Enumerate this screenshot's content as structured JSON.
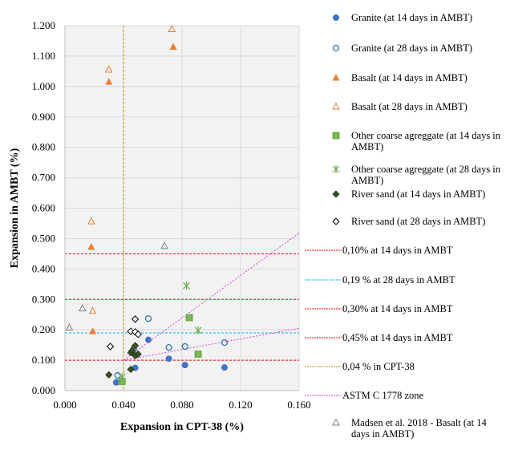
{
  "chart_data": {
    "type": "scatter",
    "title": "",
    "xlabel": "Expansion in CPT-38 (%)",
    "ylabel": "Expansion in AMBT (%)",
    "xlim": [
      0.0,
      0.16
    ],
    "ylim": [
      0.0,
      1.2
    ],
    "xticks": [
      "0.000",
      "0.040",
      "0.080",
      "0.120",
      "0.160"
    ],
    "xtick_values": [
      0.0,
      0.04,
      0.08,
      0.12,
      0.16
    ],
    "yticks": [
      "0.000",
      "0.100",
      "0.200",
      "0.300",
      "0.400",
      "0.500",
      "0.600",
      "0.700",
      "0.800",
      "0.900",
      "1.000",
      "1.100",
      "1.200"
    ],
    "ytick_values": [
      0.0,
      0.1,
      0.2,
      0.3,
      0.4,
      0.5,
      0.6,
      0.7,
      0.8,
      0.9,
      1.0,
      1.1,
      1.2
    ],
    "grid": true,
    "legend_position": "right",
    "series": [
      {
        "name": "Granite (at 14 days in AMBT)",
        "marker": "circle-filled",
        "color": "#4472C4",
        "points": [
          [
            0.035,
            0.027
          ],
          [
            0.048,
            0.075
          ],
          [
            0.057,
            0.167
          ],
          [
            0.071,
            0.105
          ],
          [
            0.082,
            0.084
          ],
          [
            0.109,
            0.076
          ]
        ]
      },
      {
        "name": "Granite (at 28 days in AMBT)",
        "marker": "circle-open",
        "color": "#2E75B6",
        "points": [
          [
            0.036,
            0.05
          ],
          [
            0.047,
            0.137
          ],
          [
            0.057,
            0.237
          ],
          [
            0.071,
            0.142
          ],
          [
            0.082,
            0.145
          ],
          [
            0.109,
            0.158
          ]
        ]
      },
      {
        "name": "Basalt (at 14 days in AMBT)",
        "marker": "triangle-filled",
        "color": "#ED7D31",
        "points": [
          [
            0.03,
            1.015
          ],
          [
            0.074,
            1.13
          ],
          [
            0.018,
            0.472
          ],
          [
            0.019,
            0.195
          ]
        ]
      },
      {
        "name": "Basalt (at 28 days in AMBT)",
        "marker": "triangle-open",
        "color": "#ED7D31",
        "points": [
          [
            0.03,
            1.055
          ],
          [
            0.073,
            1.188
          ],
          [
            0.018,
            0.556
          ],
          [
            0.019,
            0.262
          ]
        ]
      },
      {
        "name": "Other coarse agreggate (at 14 days in AMBT)",
        "marker": "square-filled",
        "color": "#70AD47",
        "points": [
          [
            0.039,
            0.03
          ],
          [
            0.085,
            0.24
          ],
          [
            0.091,
            0.12
          ]
        ]
      },
      {
        "name": "Other coarse agreggate (at 28 days in AMBT)",
        "marker": "star",
        "color": "#70AD47",
        "points": [
          [
            0.039,
            0.045
          ],
          [
            0.083,
            0.345
          ],
          [
            0.091,
            0.198
          ]
        ]
      },
      {
        "name": "River sand (at 14 days in AMBT)",
        "marker": "diamond-filled",
        "color": "#375623",
        "points": [
          [
            0.03,
            0.052
          ],
          [
            0.045,
            0.07
          ],
          [
            0.045,
            0.125
          ],
          [
            0.046,
            0.132
          ],
          [
            0.048,
            0.148
          ],
          [
            0.048,
            0.115
          ],
          [
            0.05,
            0.12
          ]
        ]
      },
      {
        "name": "River sand (at 28 days in AMBT)",
        "marker": "diamond-open",
        "color": "#000000",
        "points": [
          [
            0.031,
            0.145
          ],
          [
            0.045,
            0.195
          ],
          [
            0.048,
            0.235
          ],
          [
            0.048,
            0.193
          ],
          [
            0.05,
            0.185
          ]
        ]
      },
      {
        "name": "Madsen et al. 2018 - Basalt (at 14 days in AMBT)",
        "marker": "triangle-open",
        "color": "#808080",
        "points": [
          [
            0.003,
            0.207
          ],
          [
            0.012,
            0.27
          ],
          [
            0.068,
            0.475
          ]
        ]
      }
    ],
    "reference_lines": [
      {
        "name": "0,10% at 14 days in AMBT",
        "type": "horizontal",
        "value": 0.1,
        "color": "#FF0000"
      },
      {
        "name": "0,19 % at 28 days in AMBT",
        "type": "horizontal",
        "value": 0.19,
        "color": "#00B0F0"
      },
      {
        "name": "0,30% at 14 days in AMBT",
        "type": "horizontal",
        "value": 0.3,
        "color": "#FF0000"
      },
      {
        "name": "0,45% at 14 days in AMBT",
        "type": "horizontal",
        "value": 0.45,
        "color": "#FF0000"
      },
      {
        "name": "0,04 % in CPT-38",
        "type": "vertical",
        "value": 0.04,
        "color": "#C09000"
      },
      {
        "name": "ASTM C 1778 zone",
        "type": "segments",
        "color": "#E040E0",
        "segments": [
          [
            [
              0.04,
              0.1
            ],
            [
              0.16,
              0.518
            ]
          ],
          [
            [
              0.04,
              0.1
            ],
            [
              0.16,
              0.205
            ]
          ]
        ]
      }
    ]
  },
  "legend": {
    "items": [
      {
        "label": "Granite (at 14 days in AMBT)",
        "series": 0
      },
      {
        "label": "Granite (at 28 days in AMBT)",
        "series": 1
      },
      {
        "label": "Basalt (at 14 days in AMBT)",
        "series": 2
      },
      {
        "label": "Basalt (at 28 days in AMBT)",
        "series": 3
      },
      {
        "label": "Other coarse agreggate (at 14 days in AMBT)",
        "series": 4
      },
      {
        "label": "Other coarse agreggate (at 28 days in AMBT)",
        "series": 5
      },
      {
        "label": "River sand (at 14 days in AMBT)",
        "series": 6
      },
      {
        "label": "River sand (at 28 days in AMBT)",
        "series": 7
      },
      {
        "label": "0,10% at 14 days in AMBT",
        "line": 0
      },
      {
        "label": "0,19 % at 28 days in AMBT",
        "line": 1
      },
      {
        "label": "0,30% at 14 days in AMBT",
        "line": 2
      },
      {
        "label": "0,45% at 14 days in AMBT",
        "line": 3
      },
      {
        "label": "0,04 % in CPT-38",
        "line": 4
      },
      {
        "label": "ASTM C 1778 zone",
        "line": 5
      },
      {
        "label": "Madsen et al. 2018 - Basalt (at 14 days in AMBT)",
        "series": 8
      }
    ]
  }
}
